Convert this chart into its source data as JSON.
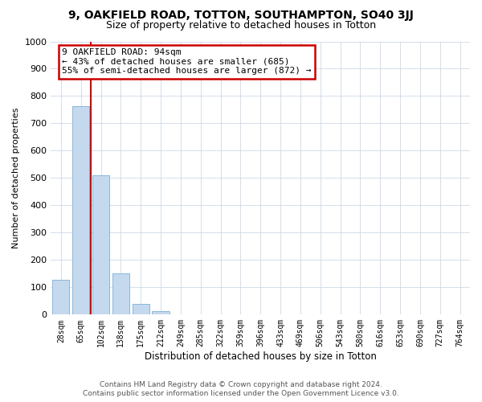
{
  "title1": "9, OAKFIELD ROAD, TOTTON, SOUTHAMPTON, SO40 3JJ",
  "title2": "Size of property relative to detached houses in Totton",
  "xlabel": "Distribution of detached houses by size in Totton",
  "ylabel": "Number of detached properties",
  "bar_labels": [
    "28sqm",
    "65sqm",
    "102sqm",
    "138sqm",
    "175sqm",
    "212sqm",
    "249sqm",
    "285sqm",
    "322sqm",
    "359sqm",
    "396sqm",
    "433sqm",
    "469sqm",
    "506sqm",
    "543sqm",
    "580sqm",
    "616sqm",
    "653sqm",
    "690sqm",
    "727sqm",
    "764sqm"
  ],
  "bar_values": [
    127,
    762,
    510,
    152,
    40,
    13,
    0,
    0,
    0,
    0,
    0,
    0,
    0,
    0,
    0,
    0,
    0,
    0,
    0,
    0,
    0
  ],
  "bar_color": "#c5d9ee",
  "bar_edge_color": "#7bafd4",
  "vline_color": "#cc0000",
  "annotation_title": "9 OAKFIELD ROAD: 94sqm",
  "annotation_line1": "← 43% of detached houses are smaller (685)",
  "annotation_line2": "55% of semi-detached houses are larger (872) →",
  "annotation_box_color": "#ffffff",
  "annotation_box_edge": "#cc0000",
  "ylim": [
    0,
    1000
  ],
  "yticks": [
    0,
    100,
    200,
    300,
    400,
    500,
    600,
    700,
    800,
    900,
    1000
  ],
  "footer1": "Contains HM Land Registry data © Crown copyright and database right 2024.",
  "footer2": "Contains public sector information licensed under the Open Government Licence v3.0.",
  "bg_color": "#ffffff",
  "grid_color": "#cdd8e8",
  "title1_fontsize": 10,
  "title2_fontsize": 9,
  "annot_fontsize": 8,
  "xlabel_fontsize": 8.5,
  "ylabel_fontsize": 8,
  "footer_fontsize": 6.5
}
